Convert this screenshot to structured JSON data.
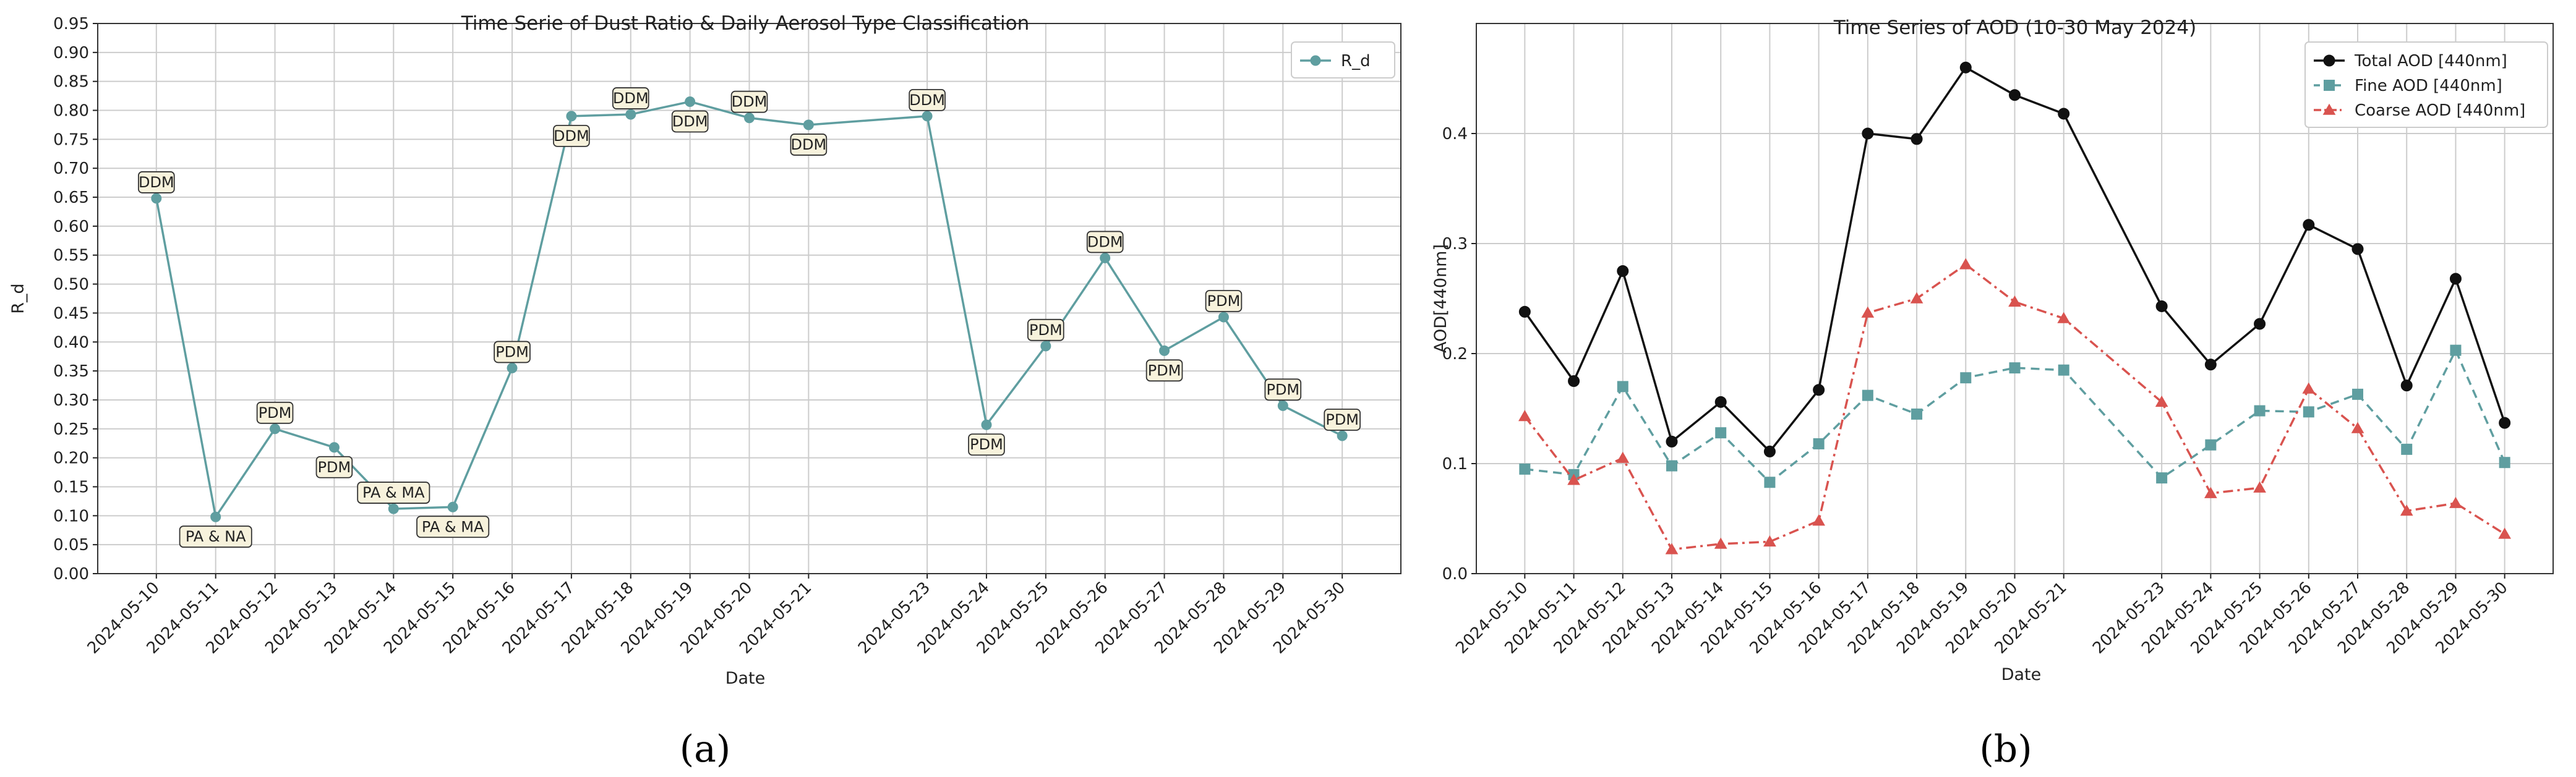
{
  "chart_data": [
    {
      "type": "line",
      "panel_label": "(a)",
      "title": "Time Serie of Dust Ratio & Daily Aerosol Type Classification",
      "xlabel": "Date",
      "ylabel": "R_d",
      "ylim": [
        0,
        0.95
      ],
      "yticks": [
        "0.00",
        "0.05",
        "0.10",
        "0.15",
        "0.20",
        "0.25",
        "0.30",
        "0.35",
        "0.40",
        "0.45",
        "0.50",
        "0.55",
        "0.60",
        "0.65",
        "0.70",
        "0.75",
        "0.80",
        "0.85",
        "0.90",
        "0.95"
      ],
      "grid": true,
      "legend_position": "top-right",
      "categories": [
        "2024-05-10",
        "2024-05-11",
        "2024-05-12",
        "2024-05-13",
        "2024-05-14",
        "2024-05-15",
        "2024-05-16",
        "2024-05-17",
        "2024-05-18",
        "2024-05-19",
        "2024-05-20",
        "2024-05-21",
        "2024-05-23",
        "2024-05-24",
        "2024-05-25",
        "2024-05-26",
        "2024-05-27",
        "2024-05-28",
        "2024-05-29",
        "2024-05-30"
      ],
      "series": [
        {
          "name": "R_d",
          "color": "#5f9ea0",
          "marker": "circle",
          "values": [
            0.648,
            0.098,
            0.25,
            0.218,
            0.112,
            0.115,
            0.355,
            0.79,
            0.793,
            0.815,
            0.787,
            0.775,
            0.79,
            0.257,
            0.393,
            0.545,
            0.385,
            0.443,
            0.29,
            0.238
          ],
          "labels": [
            "DDM",
            "PA & NA",
            "PDM",
            "PDM",
            "PA & MA",
            "PA & MA",
            "PDM",
            "DDM",
            "DDM",
            "DDM",
            "DDM",
            "DDM",
            "DDM",
            "PDM",
            "PDM",
            "DDM",
            "PDM",
            "PDM",
            "PDM",
            "PDM"
          ]
        }
      ]
    },
    {
      "type": "line",
      "panel_label": "(b)",
      "title": "Time Series of AOD (10-30 May 2024)",
      "xlabel": "Date",
      "ylabel": "AOD[440nm]",
      "ylim": [
        0,
        0.5
      ],
      "yticks": [
        "0.0",
        "0.1",
        "0.2",
        "0.3",
        "0.4"
      ],
      "grid": true,
      "legend_position": "top-right",
      "categories": [
        "2024-05-10",
        "2024-05-11",
        "2024-05-12",
        "2024-05-13",
        "2024-05-14",
        "2024-05-15",
        "2024-05-16",
        "2024-05-17",
        "2024-05-18",
        "2024-05-19",
        "2024-05-20",
        "2024-05-21",
        "2024-05-23",
        "2024-05-24",
        "2024-05-25",
        "2024-05-26",
        "2024-05-27",
        "2024-05-28",
        "2024-05-29",
        "2024-05-30"
      ],
      "series": [
        {
          "name": "Total AOD [440nm]",
          "color": "#111111",
          "marker": "circle",
          "dash": "solid",
          "values": [
            0.238,
            0.175,
            0.275,
            0.12,
            0.156,
            0.111,
            0.167,
            0.4,
            0.395,
            0.46,
            0.435,
            0.418,
            0.243,
            0.19,
            0.227,
            0.317,
            0.295,
            0.171,
            0.268,
            0.137
          ]
        },
        {
          "name": "Fine AOD [440nm]",
          "color": "#5f9ea0",
          "marker": "square",
          "dash": "dashed",
          "values": [
            0.095,
            0.09,
            0.17,
            0.098,
            0.128,
            0.083,
            0.118,
            0.162,
            0.145,
            0.178,
            0.187,
            0.185,
            0.087,
            0.117,
            0.148,
            0.147,
            0.163,
            0.113,
            0.203,
            0.101
          ]
        },
        {
          "name": "Coarse AOD [440nm]",
          "color": "#d9534f",
          "marker": "triangle",
          "dash": "dashdot",
          "values": [
            0.143,
            0.085,
            0.105,
            0.022,
            0.027,
            0.029,
            0.048,
            0.237,
            0.25,
            0.281,
            0.247,
            0.232,
            0.156,
            0.073,
            0.078,
            0.168,
            0.132,
            0.057,
            0.064,
            0.036
          ]
        }
      ]
    }
  ]
}
